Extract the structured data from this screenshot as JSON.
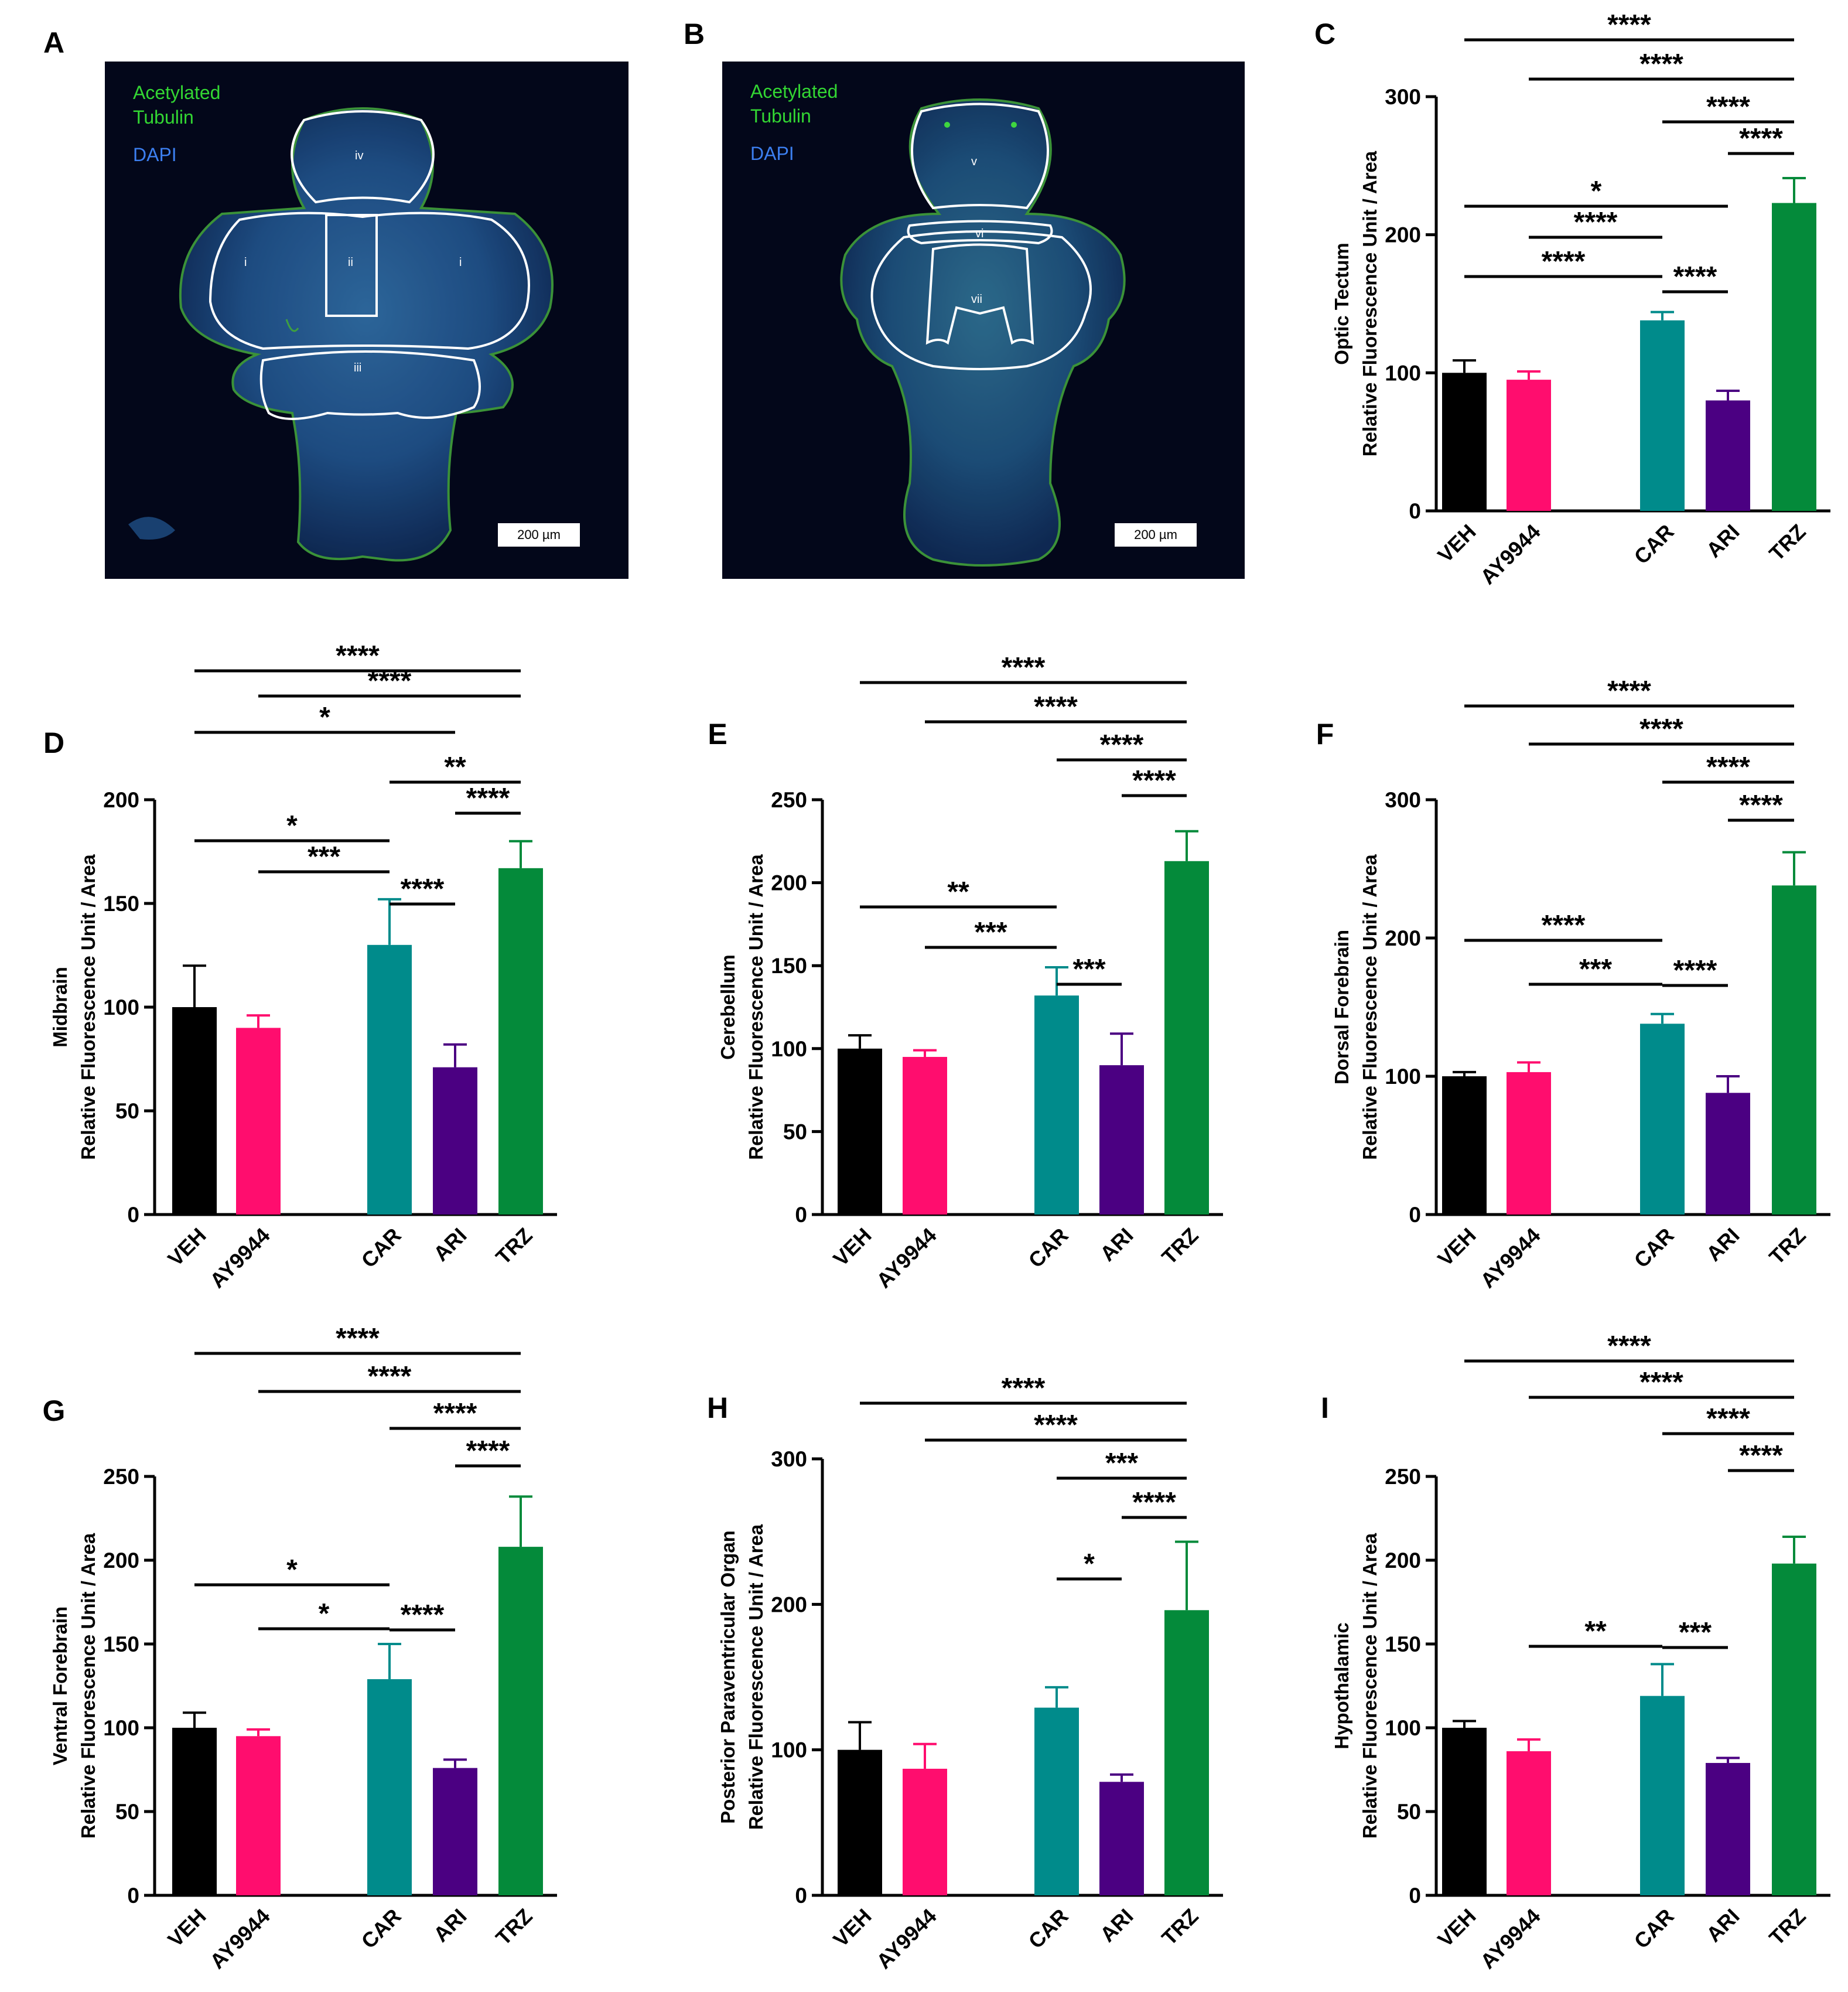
{
  "colors": {
    "VEH": "#000000",
    "AY9944": "#ff0d6e",
    "CAR": "#008b8b",
    "ARI": "#4b0082",
    "TRZ": "#048a3a",
    "micro_background": "#03071a",
    "acetylated_tubulin": "#33d633",
    "dapi": "#3c7ff0"
  },
  "micrographs": [
    {
      "panel": "A",
      "stain_labels": [
        "Acetylated",
        "Tubulin",
        "DAPI"
      ],
      "scale_bar": "200 µm",
      "regions": [
        "iv",
        "i",
        "ii",
        "i",
        "iii"
      ]
    },
    {
      "panel": "B",
      "stain_labels": [
        "Acetylated",
        "Tubulin",
        "DAPI"
      ],
      "scale_bar": "200 µm",
      "regions": [
        "v",
        "vi",
        "vii"
      ]
    }
  ],
  "chart_data": [
    {
      "panel": "C",
      "type": "bar",
      "ylabel_lines": [
        "Optic Tectum",
        "Relative Fluorescence Unit / Area"
      ],
      "ylim": [
        0,
        300
      ],
      "ticks": [
        0,
        100,
        200,
        300
      ],
      "categories": [
        "VEH",
        "AY9944",
        "CAR",
        "ARI",
        "TRZ"
      ],
      "values": [
        100,
        95,
        138,
        80,
        223
      ],
      "errors": [
        9,
        6,
        6,
        7,
        18
      ],
      "comparisons": [
        {
          "from": "VEH",
          "to": "TRZ",
          "label": "****"
        },
        {
          "from": "AY9944",
          "to": "TRZ",
          "label": "****"
        },
        {
          "from": "CAR",
          "to": "TRZ",
          "label": "****"
        },
        {
          "from": "ARI",
          "to": "TRZ",
          "label": "****"
        },
        {
          "from": "VEH",
          "to": "ARI",
          "label": "*"
        },
        {
          "from": "AY9944",
          "to": "CAR",
          "label": "****"
        },
        {
          "from": "VEH",
          "to": "CAR",
          "label": "****"
        },
        {
          "from": "CAR",
          "to": "ARI",
          "label": "****"
        }
      ]
    },
    {
      "panel": "D",
      "type": "bar",
      "ylabel_lines": [
        "Midbrain",
        "Relative Fluorescence Unit / Area"
      ],
      "ylim": [
        0,
        200
      ],
      "ticks": [
        0,
        50,
        100,
        150,
        200
      ],
      "categories": [
        "VEH",
        "AY9944",
        "CAR",
        "ARI",
        "TRZ"
      ],
      "values": [
        100,
        90,
        130,
        71,
        167
      ],
      "errors": [
        20,
        6,
        22,
        11,
        13
      ],
      "comparisons": [
        {
          "from": "VEH",
          "to": "TRZ",
          "label": "****"
        },
        {
          "from": "AY9944",
          "to": "TRZ",
          "label": "****"
        },
        {
          "from": "VEH",
          "to": "ARI",
          "label": "*"
        },
        {
          "from": "CAR",
          "to": "TRZ",
          "label": "**"
        },
        {
          "from": "ARI",
          "to": "TRZ",
          "label": "****"
        },
        {
          "from": "VEH",
          "to": "CAR",
          "label": "*"
        },
        {
          "from": "AY9944",
          "to": "CAR",
          "label": "***"
        },
        {
          "from": "CAR",
          "to": "ARI",
          "label": "****"
        }
      ]
    },
    {
      "panel": "E",
      "type": "bar",
      "ylabel_lines": [
        "Cerebellum",
        "Relative Fluorescence Unit / Area"
      ],
      "ylim": [
        0,
        250
      ],
      "ticks": [
        0,
        50,
        100,
        150,
        200,
        250
      ],
      "categories": [
        "VEH",
        "AY9944",
        "CAR",
        "ARI",
        "TRZ"
      ],
      "values": [
        100,
        95,
        132,
        90,
        213
      ],
      "errors": [
        8,
        4,
        17,
        19,
        18
      ],
      "comparisons": [
        {
          "from": "VEH",
          "to": "TRZ",
          "label": "****"
        },
        {
          "from": "AY9944",
          "to": "TRZ",
          "label": "****"
        },
        {
          "from": "CAR",
          "to": "TRZ",
          "label": "****"
        },
        {
          "from": "ARI",
          "to": "TRZ",
          "label": "****"
        },
        {
          "from": "VEH",
          "to": "CAR",
          "label": "**"
        },
        {
          "from": "AY9944",
          "to": "CAR",
          "label": "***"
        },
        {
          "from": "CAR",
          "to": "ARI",
          "label": "***"
        }
      ]
    },
    {
      "panel": "F",
      "type": "bar",
      "ylabel_lines": [
        "Dorsal Forebrain",
        "Relative Fluorescence Unit / Area"
      ],
      "ylim": [
        0,
        300
      ],
      "ticks": [
        0,
        100,
        200,
        300
      ],
      "categories": [
        "VEH",
        "AY9944",
        "CAR",
        "ARI",
        "TRZ"
      ],
      "values": [
        100,
        103,
        138,
        88,
        238
      ],
      "errors": [
        3,
        7,
        7,
        12,
        24
      ],
      "comparisons": [
        {
          "from": "VEH",
          "to": "TRZ",
          "label": "****"
        },
        {
          "from": "AY9944",
          "to": "TRZ",
          "label": "****"
        },
        {
          "from": "CAR",
          "to": "TRZ",
          "label": "****"
        },
        {
          "from": "ARI",
          "to": "TRZ",
          "label": "****"
        },
        {
          "from": "VEH",
          "to": "CAR",
          "label": "****"
        },
        {
          "from": "AY9944",
          "to": "CAR",
          "label": "***"
        },
        {
          "from": "CAR",
          "to": "ARI",
          "label": "****"
        }
      ]
    },
    {
      "panel": "G",
      "type": "bar",
      "ylabel_lines": [
        "Ventral Forebrain",
        "Relative Fluorescence Unit / Area"
      ],
      "ylim": [
        0,
        250
      ],
      "ticks": [
        0,
        50,
        100,
        150,
        200,
        250
      ],
      "categories": [
        "VEH",
        "AY9944",
        "CAR",
        "ARI",
        "TRZ"
      ],
      "values": [
        100,
        95,
        129,
        76,
        208
      ],
      "errors": [
        9,
        4,
        21,
        5,
        30
      ],
      "comparisons": [
        {
          "from": "VEH",
          "to": "TRZ",
          "label": "****"
        },
        {
          "from": "AY9944",
          "to": "TRZ",
          "label": "****"
        },
        {
          "from": "CAR",
          "to": "TRZ",
          "label": "****"
        },
        {
          "from": "ARI",
          "to": "TRZ",
          "label": "****"
        },
        {
          "from": "VEH",
          "to": "CAR",
          "label": "*"
        },
        {
          "from": "AY9944",
          "to": "CAR",
          "label": "*"
        },
        {
          "from": "CAR",
          "to": "ARI",
          "label": "****"
        }
      ]
    },
    {
      "panel": "H",
      "type": "bar",
      "ylabel_lines": [
        "Posterior Paraventricular Organ",
        "Relative Fluorescence Unit / Area"
      ],
      "ylim": [
        0,
        300
      ],
      "ticks": [
        0,
        100,
        200,
        300
      ],
      "categories": [
        "VEH",
        "AY9944",
        "CAR",
        "ARI",
        "TRZ"
      ],
      "values": [
        100,
        87,
        129,
        78,
        196
      ],
      "errors": [
        19,
        17,
        14,
        5,
        47
      ],
      "comparisons": [
        {
          "from": "VEH",
          "to": "TRZ",
          "label": "****"
        },
        {
          "from": "AY9944",
          "to": "TRZ",
          "label": "****"
        },
        {
          "from": "CAR",
          "to": "TRZ",
          "label": "***"
        },
        {
          "from": "ARI",
          "to": "TRZ",
          "label": "****"
        },
        {
          "from": "CAR",
          "to": "ARI",
          "label": "*"
        }
      ]
    },
    {
      "panel": "I",
      "type": "bar",
      "ylabel_lines": [
        "Hypothalamic",
        "Relative Fluorescence Unit / Area"
      ],
      "ylim": [
        0,
        250
      ],
      "ticks": [
        0,
        50,
        100,
        150,
        200,
        250
      ],
      "categories": [
        "VEH",
        "AY9944",
        "CAR",
        "ARI",
        "TRZ"
      ],
      "values": [
        100,
        86,
        119,
        79,
        198
      ],
      "errors": [
        4,
        7,
        19,
        3,
        16
      ],
      "comparisons": [
        {
          "from": "VEH",
          "to": "TRZ",
          "label": "****"
        },
        {
          "from": "AY9944",
          "to": "TRZ",
          "label": "****"
        },
        {
          "from": "CAR",
          "to": "TRZ",
          "label": "****"
        },
        {
          "from": "ARI",
          "to": "TRZ",
          "label": "****"
        },
        {
          "from": "AY9944",
          "to": "CAR",
          "label": "**"
        },
        {
          "from": "CAR",
          "to": "ARI",
          "label": "***"
        }
      ]
    }
  ]
}
